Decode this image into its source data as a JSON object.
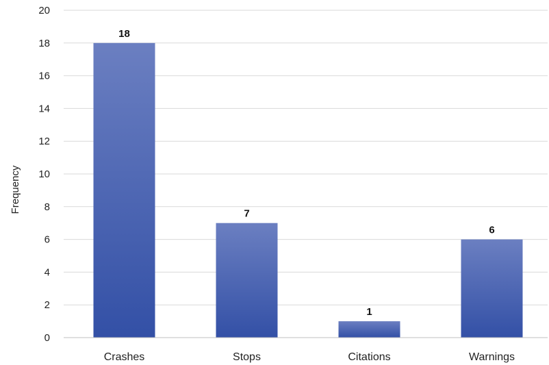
{
  "chart_data": {
    "type": "bar",
    "title": "",
    "xlabel": "",
    "ylabel": "Frequency",
    "categories": [
      "Crashes",
      "Stops",
      "Citations",
      "Warnings"
    ],
    "values": [
      18,
      7,
      1,
      6
    ],
    "ylim": [
      0,
      20
    ],
    "yticks": [
      "0",
      "2",
      "4",
      "6",
      "8",
      "10",
      "12",
      "14",
      "16",
      "18",
      "20"
    ],
    "data_labels": [
      "18",
      "7",
      "1",
      "6"
    ],
    "grid": true,
    "legend": "none",
    "colors": {
      "bar_top": "#6b7fc1",
      "bar_bottom": "#3350a6"
    }
  }
}
